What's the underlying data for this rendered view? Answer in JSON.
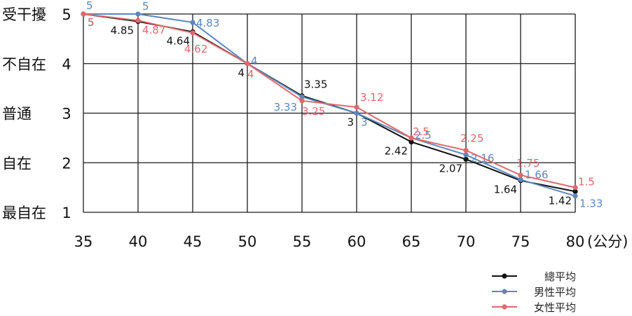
{
  "chart_data": {
    "type": "line",
    "x": [
      35,
      40,
      45,
      50,
      55,
      60,
      65,
      70,
      75,
      80
    ],
    "x_unit_label": "(公分)",
    "ylim": [
      1,
      5
    ],
    "y_ticks": [
      {
        "value": 5,
        "word": "受干擾",
        "num": "5"
      },
      {
        "value": 4,
        "word": "不自在",
        "num": "4"
      },
      {
        "value": 3,
        "word": "普通",
        "num": "3"
      },
      {
        "value": 2,
        "word": "自在",
        "num": "2"
      },
      {
        "value": 1,
        "word": "最自在",
        "num": "1"
      }
    ],
    "grid": true,
    "legend_position": "bottom-right",
    "series": [
      {
        "name": "總平均",
        "color": "#111111",
        "values": [
          5,
          4.85,
          4.64,
          4,
          3.35,
          3,
          2.42,
          2.07,
          1.64,
          1.42
        ],
        "labels": [
          "5",
          "4.85",
          "4.64",
          "4",
          "3.35",
          "3",
          "2.42",
          "2.07",
          "1.64",
          "1.42"
        ]
      },
      {
        "name": "男性平均",
        "color": "#5b87c0",
        "values": [
          5,
          5,
          4.83,
          4,
          3.33,
          3,
          2.5,
          2.16,
          1.66,
          1.33
        ],
        "labels": [
          "5",
          "5",
          "4.83",
          "4",
          "3.33",
          "3",
          "2.5",
          "2.16",
          "1.66",
          "1.33"
        ]
      },
      {
        "name": "女性平均",
        "color": "#e0686c",
        "values": [
          5,
          4.87,
          4.62,
          4,
          3.25,
          3.12,
          2.5,
          2.25,
          1.75,
          1.5
        ],
        "labels": [
          "5",
          "4.87",
          "4.62",
          "4",
          "3.25",
          "3.12",
          "2.5",
          "2.25",
          "1.75",
          "1.5"
        ]
      }
    ]
  }
}
